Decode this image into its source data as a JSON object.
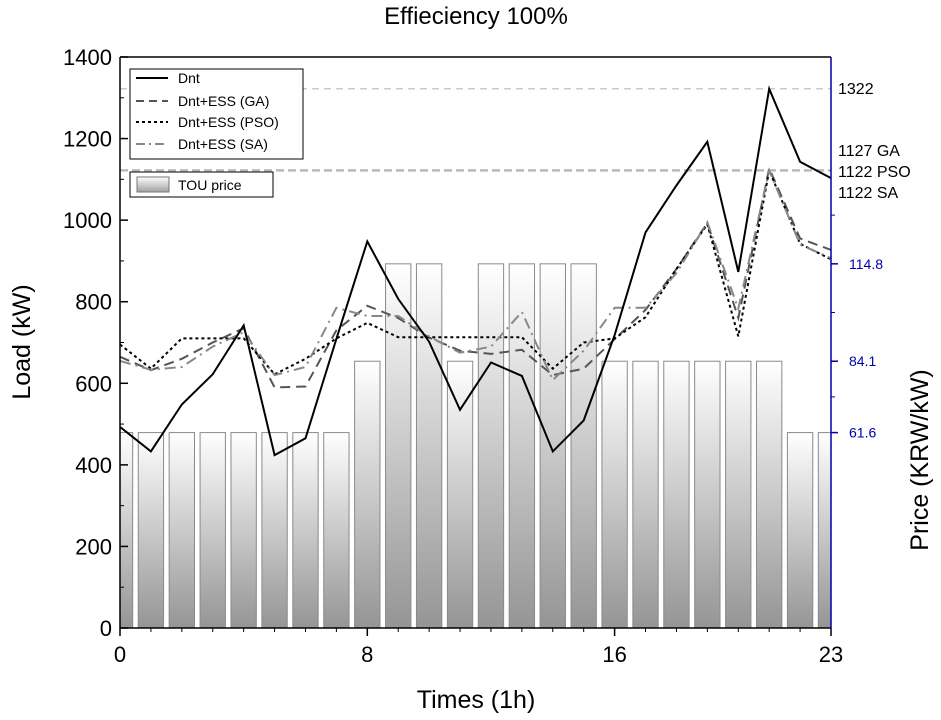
{
  "chart_data": {
    "type": "line",
    "title": "Effieciency 100%",
    "xlabel": "Times (1h)",
    "ylabel": "Load (kW)",
    "y2label": "Price (KRW/kW)",
    "xlim": [
      0,
      23
    ],
    "ylim": [
      0,
      1400
    ],
    "y2lim": [
      0,
      180
    ],
    "x_ticks": [
      0,
      8,
      16,
      23
    ],
    "y_ticks": [
      0,
      200,
      400,
      600,
      800,
      1000,
      1200,
      1400
    ],
    "y2_ticks": [
      "61.6",
      "84.1",
      "114.8"
    ],
    "legend_position": "top-left",
    "x": [
      0,
      1,
      2,
      3,
      4,
      5,
      6,
      7,
      8,
      9,
      10,
      11,
      12,
      13,
      14,
      15,
      16,
      17,
      18,
      19,
      20,
      21,
      22,
      23
    ],
    "series": [
      {
        "name": "Dnt",
        "style": "solid",
        "color": "#000000",
        "values": [
          493,
          433,
          548,
          622,
          742,
          424,
          465,
          709,
          948,
          807,
          702,
          535,
          651,
          618,
          433,
          509,
          718,
          970,
          1085,
          1192,
          873,
          1322,
          1143,
          1103
        ]
      },
      {
        "name": "Dnt+ESS (GA)",
        "style": "dash",
        "color": "#555555",
        "values": [
          665,
          632,
          660,
          700,
          735,
          590,
          592,
          730,
          790,
          760,
          712,
          680,
          672,
          682,
          620,
          636,
          708,
          780,
          880,
          993,
          760,
          1127,
          955,
          927
        ]
      },
      {
        "name": "Dnt+ESS (PSO)",
        "style": "dot",
        "color": "#000000",
        "values": [
          695,
          636,
          710,
          710,
          710,
          622,
          660,
          710,
          748,
          713,
          713,
          713,
          713,
          713,
          636,
          700,
          710,
          762,
          880,
          990,
          715,
          1122,
          942,
          904
        ]
      },
      {
        "name": "Dnt+ESS (SA)",
        "style": "dashdot",
        "color": "#888888",
        "values": [
          655,
          633,
          640,
          690,
          725,
          620,
          640,
          785,
          765,
          765,
          715,
          675,
          690,
          775,
          608,
          680,
          785,
          785,
          870,
          995,
          783,
          1122,
          940,
          907
        ]
      }
    ],
    "bars": {
      "name": "TOU price",
      "values": [
        61.6,
        61.6,
        61.6,
        61.6,
        61.6,
        61.6,
        61.6,
        61.6,
        84.1,
        114.8,
        114.8,
        84.1,
        114.8,
        114.8,
        114.8,
        114.8,
        84.1,
        84.1,
        84.1,
        84.1,
        84.1,
        84.1,
        61.6,
        61.6
      ]
    },
    "reference_lines": [
      {
        "value": 1322,
        "label": "1322"
      },
      {
        "value": 1122,
        "label": ""
      }
    ],
    "right_annotations": [
      "1127 GA",
      "1122 PSO",
      "1122 SA"
    ],
    "colors": {
      "price_axis": "#0000aa",
      "reference": "#bbbbbb"
    }
  }
}
